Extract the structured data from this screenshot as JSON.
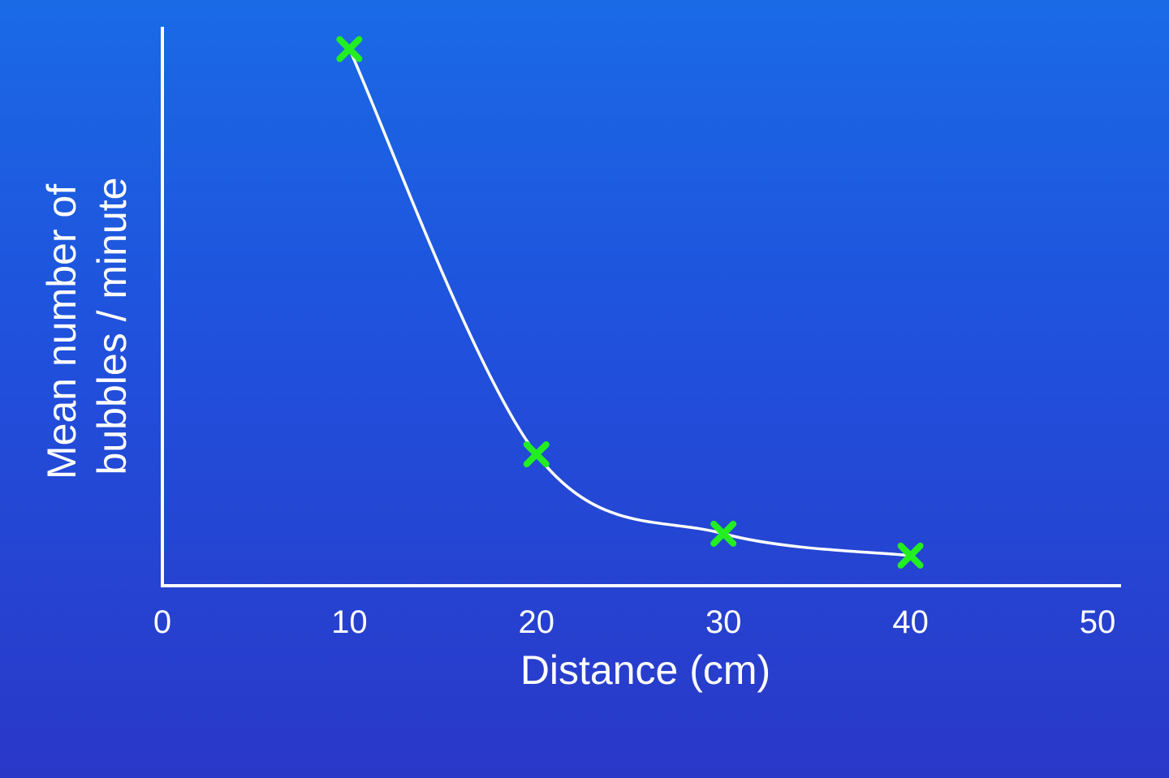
{
  "chart_data": {
    "type": "line",
    "title": "",
    "xlabel": "Distance (cm)",
    "ylabel_lines": [
      "Mean number of",
      "bubbles / minute"
    ],
    "xlim": [
      0,
      50
    ],
    "ylim": [
      0,
      100
    ],
    "x_ticks": [
      "0",
      "10",
      "20",
      "30",
      "40",
      "50"
    ],
    "y_ticks_shown": false,
    "grid": false,
    "legend": "none",
    "series": [
      {
        "x": [
          10,
          20,
          30,
          40
        ],
        "y": [
          98,
          24,
          9.5,
          5.5
        ]
      }
    ],
    "marker": "x",
    "marker_color": "#22ee22",
    "curve_color": "#ffffff",
    "axis_color": "#ffffff",
    "background_color": "#1f55dd"
  }
}
